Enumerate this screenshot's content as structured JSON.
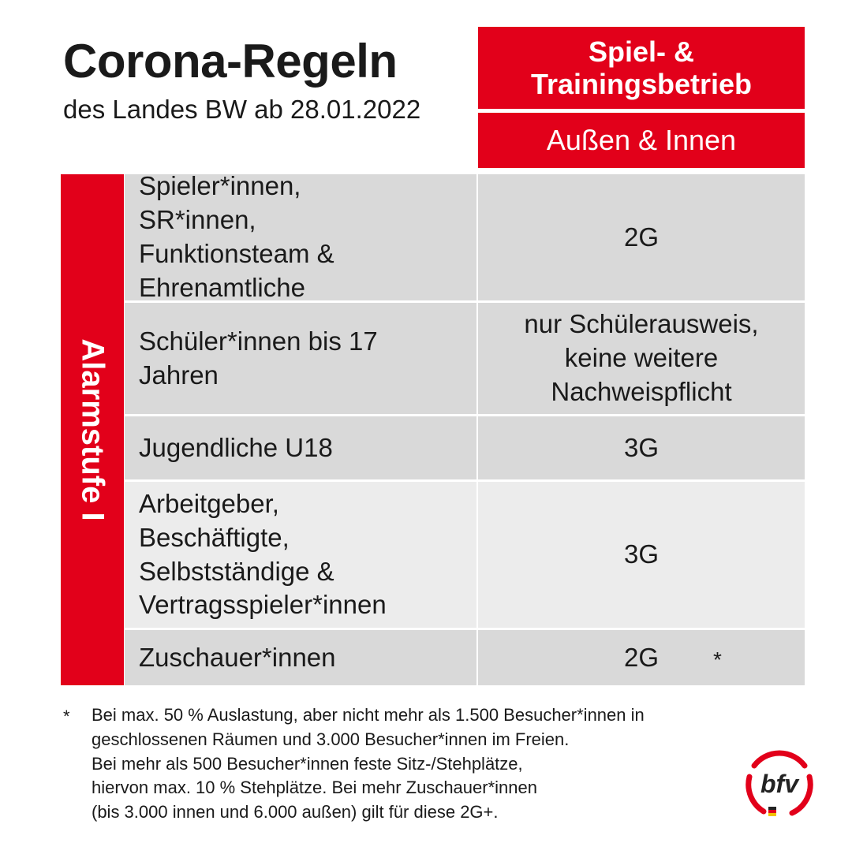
{
  "header": {
    "title": "Corona-Regeln",
    "subtitle": "des Landes BW ab 28.01.2022",
    "column_title_line1": "Spiel- &",
    "column_title_line2": "Trainingsbetrieb",
    "column_subtitle": "Außen & Innen"
  },
  "side_label": "Alarmstufe I",
  "rows": [
    {
      "group": "Spieler*innen, SR*innen, Funktionsteam & Ehrenamtliche",
      "rule": "2G"
    },
    {
      "group": "Schüler*innen bis 17 Jahren",
      "rule": "nur Schülerausweis, keine weitere Nachweispflicht"
    },
    {
      "group": "Jugendliche U18",
      "rule": "3G"
    },
    {
      "group": "Arbeitgeber, Beschäftigte, Selbstständige & Vertragsspieler*innen",
      "rule": "3G"
    },
    {
      "group": "Zuschauer*innen",
      "rule": "2G",
      "note_marker": "*"
    }
  ],
  "footnote": {
    "marker": "*",
    "lines": [
      "Bei max. 50 % Auslastung, aber nicht mehr als 1.500 Besucher*innen in",
      "geschlossenen Räumen und 3.000 Besucher*innen im Freien.",
      "Bei mehr als 500 Besucher*innen feste Sitz-/Stehplätze,",
      "hiervon max. 10 % Stehplätze.  Bei mehr Zuschauer*innen",
      "(bis 3.000 innen und 6.000 außen) gilt für diese 2G+."
    ]
  },
  "logo": {
    "text": "bfv",
    "icon": "bfv-logo",
    "brand_color": "#e2001a"
  },
  "colors": {
    "accent": "#e2001a",
    "row_dark": "#d9d9d9",
    "row_light": "#ececec"
  }
}
